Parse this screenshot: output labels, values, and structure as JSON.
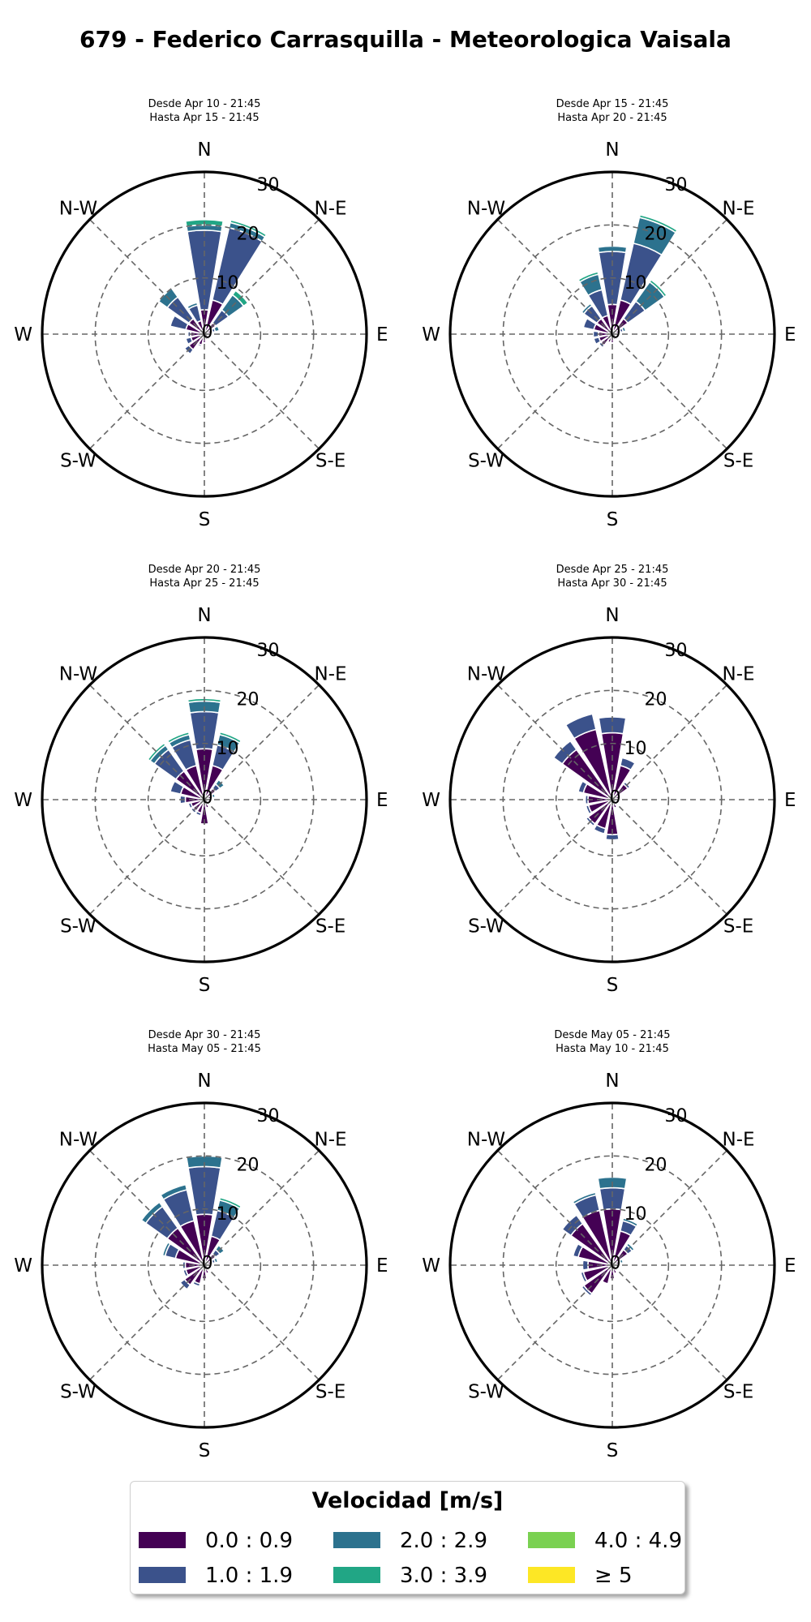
{
  "title": "679 - Federico Carrasquilla - Meteorologica Vaisala",
  "legend": {
    "title": "Velocidad [m/s]",
    "bins": [
      {
        "label": "0.0 : 0.9",
        "color": "#440154"
      },
      {
        "label": "1.0 : 1.9",
        "color": "#3b528b"
      },
      {
        "label": "2.0 : 2.9",
        "color": "#2c728e"
      },
      {
        "label": "3.0 : 3.9",
        "color": "#21a685"
      },
      {
        "label": "4.0 : 4.9",
        "color": "#7ad151"
      },
      {
        "label": "≥ 5",
        "color": "#fde725"
      }
    ]
  },
  "directions": [
    "N",
    "N-E",
    "E",
    "S-E",
    "S",
    "S-W",
    "W",
    "N-W"
  ],
  "ring_ticks": [
    "0",
    "10",
    "20",
    "30"
  ],
  "chart_data": [
    {
      "type": "windrose",
      "subtitle": [
        "Desde Apr 10 - 21:45",
        "Hasta Apr 15 - 21:45"
      ],
      "rmax": 30,
      "sector_directions_deg": [
        0,
        22.5,
        45,
        67.5,
        90,
        112.5,
        135,
        157.5,
        180,
        202.5,
        225,
        247.5,
        270,
        292.5,
        315,
        337.5
      ],
      "sectors": [
        [
          4,
          15,
          1,
          1,
          0,
          0
        ],
        [
          6,
          14,
          1,
          0.5,
          0,
          0
        ],
        [
          2,
          3,
          3.5,
          1,
          0,
          0
        ],
        [
          1,
          0.5,
          0.8,
          0,
          0,
          0
        ],
        [
          0.5,
          0,
          0,
          0,
          0,
          0
        ],
        [
          0.5,
          0,
          0,
          0,
          0,
          0
        ],
        [
          0.5,
          0,
          0,
          0,
          0,
          0
        ],
        [
          0.5,
          0,
          0,
          0,
          0,
          0
        ],
        [
          1,
          0,
          0,
          0,
          0,
          0
        ],
        [
          1.5,
          0.3,
          0,
          0,
          0,
          0
        ],
        [
          3,
          1,
          0,
          0,
          0,
          0
        ],
        [
          2,
          1,
          0,
          0,
          0,
          0
        ],
        [
          2,
          0.5,
          0,
          0,
          0,
          0
        ],
        [
          3,
          3,
          0,
          0,
          0,
          0
        ],
        [
          3,
          5,
          2,
          0,
          0,
          0
        ],
        [
          2,
          3,
          0.5,
          0,
          0,
          0
        ]
      ]
    },
    {
      "type": "windrose",
      "subtitle": [
        "Desde Apr 15 - 21:45",
        "Hasta Apr 20 - 21:45"
      ],
      "rmax": 30,
      "sector_directions_deg": [
        0,
        22.5,
        45,
        67.5,
        90,
        112.5,
        135,
        157.5,
        180,
        202.5,
        225,
        247.5,
        270,
        292.5,
        315,
        337.5
      ],
      "sectors": [
        [
          5,
          10,
          1,
          0,
          0,
          0
        ],
        [
          6,
          11,
          5,
          0.5,
          0,
          0
        ],
        [
          3,
          4,
          4.5,
          0.5,
          0,
          0
        ],
        [
          1,
          0.5,
          0.5,
          0,
          0,
          0
        ],
        [
          0.5,
          0,
          0,
          0,
          0,
          0
        ],
        [
          0.5,
          0,
          0,
          0,
          0,
          0
        ],
        [
          0.5,
          0,
          0,
          0,
          0,
          0
        ],
        [
          0.5,
          0,
          0,
          0,
          0,
          0
        ],
        [
          1,
          0,
          0,
          0,
          0,
          0
        ],
        [
          1,
          0,
          0,
          0,
          0,
          0
        ],
        [
          2,
          0.5,
          0,
          0,
          0,
          0
        ],
        [
          2,
          1,
          0,
          0,
          0,
          0
        ],
        [
          2,
          1,
          0,
          0,
          0,
          0
        ],
        [
          3,
          2,
          0,
          0,
          0,
          0
        ],
        [
          3,
          3,
          0.5,
          0,
          0,
          0
        ],
        [
          3,
          5,
          3,
          0.5,
          0,
          0
        ]
      ]
    },
    {
      "type": "windrose",
      "subtitle": [
        "Desde Apr 20 - 21:45",
        "Hasta Apr 25 - 21:45"
      ],
      "rmax": 30,
      "sector_directions_deg": [
        0,
        22.5,
        45,
        67.5,
        90,
        112.5,
        135,
        157.5,
        180,
        202.5,
        225,
        247.5,
        270,
        292.5,
        315,
        337.5
      ],
      "sectors": [
        [
          9,
          7,
          2,
          0.5,
          0,
          0
        ],
        [
          6,
          4,
          2,
          0.5,
          0,
          0
        ],
        [
          2,
          1,
          1,
          0,
          0,
          0
        ],
        [
          1,
          0,
          0.5,
          0,
          0,
          0
        ],
        [
          0.5,
          0,
          0,
          0,
          0,
          0
        ],
        [
          0.5,
          0,
          0,
          0,
          0,
          0
        ],
        [
          0.5,
          0,
          0,
          0,
          0,
          0
        ],
        [
          1,
          0,
          0,
          0,
          0,
          0
        ],
        [
          4,
          0,
          0,
          0,
          0,
          0
        ],
        [
          2,
          0.5,
          0,
          0,
          0,
          0
        ],
        [
          2,
          0.5,
          0,
          0,
          0,
          0
        ],
        [
          2,
          0.5,
          0,
          0,
          0,
          0
        ],
        [
          3,
          1,
          0,
          0,
          0,
          0
        ],
        [
          4,
          2,
          0,
          0,
          0,
          0
        ],
        [
          6,
          5,
          1,
          0.5,
          0,
          0
        ],
        [
          6,
          5,
          1,
          0.5,
          0,
          0
        ]
      ]
    },
    {
      "type": "windrose",
      "subtitle": [
        "Desde Apr 25 - 21:45",
        "Hasta Apr 30 - 21:45"
      ],
      "rmax": 30,
      "sector_directions_deg": [
        0,
        22.5,
        45,
        67.5,
        90,
        112.5,
        135,
        157.5,
        180,
        202.5,
        225,
        247.5,
        270,
        292.5,
        315,
        337.5
      ],
      "sectors": [
        [
          12,
          3,
          0,
          0,
          0,
          0
        ],
        [
          6,
          1.5,
          0,
          0,
          0,
          0
        ],
        [
          3,
          0.5,
          0,
          0,
          0,
          0
        ],
        [
          1,
          0,
          0,
          0,
          0,
          0
        ],
        [
          0.5,
          0,
          0,
          0,
          0,
          0
        ],
        [
          0.5,
          0,
          0,
          0,
          0,
          0
        ],
        [
          0.5,
          0,
          0,
          0,
          0,
          0
        ],
        [
          1,
          0,
          0,
          0,
          0,
          0
        ],
        [
          6,
          1,
          0,
          0,
          0,
          0
        ],
        [
          5,
          1,
          0,
          0,
          0,
          0
        ],
        [
          5,
          0.5,
          0,
          0,
          0,
          0
        ],
        [
          4,
          0.5,
          0,
          0,
          0,
          0
        ],
        [
          4,
          0.5,
          0,
          0,
          0,
          0
        ],
        [
          5,
          1,
          0,
          0,
          0,
          0
        ],
        [
          11,
          2,
          0,
          0,
          0,
          0
        ],
        [
          13,
          3,
          0,
          0,
          0,
          0
        ]
      ]
    },
    {
      "type": "windrose",
      "subtitle": [
        "Desde Apr 30 - 21:45",
        "Hasta May 05 - 21:45"
      ],
      "rmax": 30,
      "sector_directions_deg": [
        0,
        22.5,
        45,
        67.5,
        90,
        112.5,
        135,
        157.5,
        180,
        202.5,
        225,
        247.5,
        270,
        292.5,
        315,
        337.5
      ],
      "sectors": [
        [
          9,
          9,
          2,
          0,
          0,
          0
        ],
        [
          5,
          5,
          2,
          0.5,
          0,
          0
        ],
        [
          2,
          1,
          1,
          0,
          0,
          0
        ],
        [
          1,
          0.5,
          0.5,
          0,
          0,
          0
        ],
        [
          0.5,
          0,
          0,
          0,
          0,
          0
        ],
        [
          0.5,
          0,
          0,
          0,
          0,
          0
        ],
        [
          0.5,
          0,
          0,
          0,
          0,
          0
        ],
        [
          1,
          0,
          0,
          0,
          0,
          0
        ],
        [
          2,
          0,
          0,
          0,
          0,
          0
        ],
        [
          3,
          0.5,
          0,
          0,
          0,
          0
        ],
        [
          4,
          1,
          0,
          0,
          0,
          0
        ],
        [
          3,
          0.5,
          0,
          0,
          0,
          0
        ],
        [
          3,
          0.5,
          0,
          0,
          0,
          0
        ],
        [
          5,
          2,
          0.5,
          0,
          0,
          0
        ],
        [
          8,
          5,
          1,
          0,
          0,
          0
        ],
        [
          8,
          6,
          1,
          0,
          0,
          0
        ]
      ]
    },
    {
      "type": "windrose",
      "subtitle": [
        "Desde May 05 - 21:45",
        "Hasta May 10 - 21:45"
      ],
      "rmax": 30,
      "sector_directions_deg": [
        0,
        22.5,
        45,
        67.5,
        90,
        112.5,
        135,
        157.5,
        180,
        202.5,
        225,
        247.5,
        270,
        292.5,
        315,
        337.5
      ],
      "sectors": [
        [
          10,
          4,
          2,
          0,
          0,
          0
        ],
        [
          6,
          2,
          0.5,
          0,
          0,
          0
        ],
        [
          3,
          1,
          0.5,
          0,
          0,
          0
        ],
        [
          1,
          0,
          0.5,
          0,
          0,
          0
        ],
        [
          0.5,
          0,
          0,
          0,
          0,
          0
        ],
        [
          0.5,
          0,
          0,
          0,
          0,
          0
        ],
        [
          0.5,
          0,
          0,
          0,
          0,
          0
        ],
        [
          1,
          0,
          0,
          0,
          0,
          0
        ],
        [
          2,
          0,
          0,
          0,
          0,
          0
        ],
        [
          3,
          0,
          0,
          0,
          0,
          0
        ],
        [
          6,
          0.5,
          0,
          0,
          0,
          0
        ],
        [
          5,
          0.5,
          0,
          0,
          0,
          0
        ],
        [
          4,
          1,
          0,
          0,
          0,
          0
        ],
        [
          6,
          1,
          0,
          0,
          0,
          0
        ],
        [
          9,
          2,
          0,
          0,
          0,
          0
        ],
        [
          10,
          3,
          0.5,
          0,
          0,
          0
        ]
      ]
    }
  ]
}
